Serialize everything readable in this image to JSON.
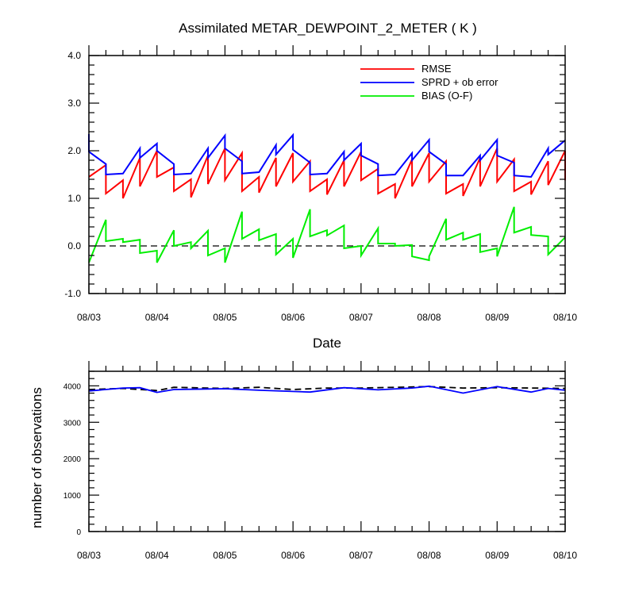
{
  "chart_data": [
    {
      "type": "line",
      "title": "Assimilated METAR_DEWPOINT_2_METER ( K )",
      "xlabel": "Date",
      "ylabel": "",
      "ylim": [
        -1.0,
        4.0
      ],
      "yticks": [
        "-1.0",
        "0.0",
        "1.0",
        "2.0",
        "3.0",
        "4.0"
      ],
      "xlim": [
        0,
        7
      ],
      "xticks": [
        "08/03",
        "08/04",
        "08/05",
        "08/06",
        "08/07",
        "08/08",
        "08/09",
        "08/10"
      ],
      "grid": false,
      "legend": "top-right",
      "reference_line": {
        "y": 0,
        "style": "dashed",
        "color": "#000000"
      },
      "series": [
        {
          "name": "RMSE",
          "color": "#ff0000",
          "points": [
            [
              0.0,
              1.45
            ],
            [
              0.25,
              1.7
            ],
            [
              0.25,
              1.1
            ],
            [
              0.5,
              1.38
            ],
            [
              0.5,
              1.0
            ],
            [
              0.75,
              1.85
            ],
            [
              0.75,
              1.25
            ],
            [
              1.0,
              2.0
            ],
            [
              1.0,
              1.45
            ],
            [
              1.25,
              1.65
            ],
            [
              1.25,
              1.15
            ],
            [
              1.5,
              1.4
            ],
            [
              1.5,
              1.02
            ],
            [
              1.75,
              1.9
            ],
            [
              1.75,
              1.3
            ],
            [
              2.0,
              2.05
            ],
            [
              2.0,
              1.38
            ],
            [
              2.25,
              1.95
            ],
            [
              2.25,
              1.15
            ],
            [
              2.5,
              1.45
            ],
            [
              2.5,
              1.12
            ],
            [
              2.75,
              1.85
            ],
            [
              2.75,
              1.25
            ],
            [
              3.0,
              1.95
            ],
            [
              3.0,
              1.35
            ],
            [
              3.25,
              1.78
            ],
            [
              3.25,
              1.15
            ],
            [
              3.5,
              1.4
            ],
            [
              3.5,
              1.08
            ],
            [
              3.75,
              1.8
            ],
            [
              3.75,
              1.25
            ],
            [
              4.0,
              1.98
            ],
            [
              4.0,
              1.38
            ],
            [
              4.25,
              1.62
            ],
            [
              4.25,
              1.1
            ],
            [
              4.5,
              1.3
            ],
            [
              4.5,
              1.0
            ],
            [
              4.75,
              1.82
            ],
            [
              4.75,
              1.25
            ],
            [
              5.0,
              1.95
            ],
            [
              5.0,
              1.35
            ],
            [
              5.25,
              1.78
            ],
            [
              5.25,
              1.1
            ],
            [
              5.5,
              1.3
            ],
            [
              5.5,
              1.05
            ],
            [
              5.75,
              1.85
            ],
            [
              5.75,
              1.25
            ],
            [
              6.0,
              2.05
            ],
            [
              6.0,
              1.35
            ],
            [
              6.25,
              1.82
            ],
            [
              6.25,
              1.15
            ],
            [
              6.5,
              1.35
            ],
            [
              6.5,
              1.08
            ],
            [
              6.75,
              1.78
            ],
            [
              6.75,
              1.28
            ],
            [
              7.0,
              2.0
            ],
            [
              7.0,
              1.38
            ]
          ]
        },
        {
          "name": "SPRD + ob error",
          "color": "#0000ff",
          "points": [
            [
              0.0,
              2.35
            ],
            [
              0.0,
              1.98
            ],
            [
              0.25,
              1.72
            ],
            [
              0.25,
              1.5
            ],
            [
              0.5,
              1.52
            ],
            [
              0.75,
              2.05
            ],
            [
              0.75,
              1.85
            ],
            [
              1.0,
              2.15
            ],
            [
              1.0,
              2.0
            ],
            [
              1.25,
              1.72
            ],
            [
              1.25,
              1.5
            ],
            [
              1.5,
              1.52
            ],
            [
              1.75,
              2.05
            ],
            [
              1.75,
              1.85
            ],
            [
              2.0,
              2.32
            ],
            [
              2.0,
              2.05
            ],
            [
              2.25,
              1.78
            ],
            [
              2.25,
              1.52
            ],
            [
              2.5,
              1.55
            ],
            [
              2.75,
              2.12
            ],
            [
              2.75,
              1.92
            ],
            [
              3.0,
              2.33
            ],
            [
              3.0,
              2.02
            ],
            [
              3.25,
              1.75
            ],
            [
              3.25,
              1.5
            ],
            [
              3.5,
              1.52
            ],
            [
              3.75,
              1.98
            ],
            [
              3.75,
              1.8
            ],
            [
              4.0,
              2.15
            ],
            [
              4.0,
              1.9
            ],
            [
              4.25,
              1.72
            ],
            [
              4.25,
              1.48
            ],
            [
              4.5,
              1.5
            ],
            [
              4.75,
              1.95
            ],
            [
              4.75,
              1.8
            ],
            [
              5.0,
              2.23
            ],
            [
              5.0,
              1.98
            ],
            [
              5.25,
              1.72
            ],
            [
              5.25,
              1.48
            ],
            [
              5.5,
              1.48
            ],
            [
              5.75,
              1.9
            ],
            [
              5.75,
              1.8
            ],
            [
              6.0,
              2.23
            ],
            [
              6.0,
              1.9
            ],
            [
              6.25,
              1.75
            ],
            [
              6.25,
              1.48
            ],
            [
              6.5,
              1.45
            ],
            [
              6.75,
              2.05
            ],
            [
              6.75,
              1.92
            ],
            [
              7.0,
              2.22
            ]
          ]
        },
        {
          "name": "BIAS (O-F)",
          "color": "#00ee00",
          "points": [
            [
              0.0,
              -0.35
            ],
            [
              0.25,
              0.55
            ],
            [
              0.25,
              0.1
            ],
            [
              0.5,
              0.15
            ],
            [
              0.5,
              0.08
            ],
            [
              0.75,
              0.13
            ],
            [
              0.75,
              -0.15
            ],
            [
              1.0,
              -0.1
            ],
            [
              1.0,
              -0.35
            ],
            [
              1.25,
              0.33
            ],
            [
              1.25,
              0.0
            ],
            [
              1.5,
              0.08
            ],
            [
              1.5,
              -0.05
            ],
            [
              1.75,
              0.32
            ],
            [
              1.75,
              -0.2
            ],
            [
              2.0,
              -0.05
            ],
            [
              2.0,
              -0.35
            ],
            [
              2.25,
              0.72
            ],
            [
              2.25,
              0.15
            ],
            [
              2.5,
              0.35
            ],
            [
              2.5,
              0.12
            ],
            [
              2.75,
              0.25
            ],
            [
              2.75,
              -0.18
            ],
            [
              3.0,
              0.15
            ],
            [
              3.0,
              -0.25
            ],
            [
              3.25,
              0.77
            ],
            [
              3.25,
              0.2
            ],
            [
              3.5,
              0.33
            ],
            [
              3.5,
              0.22
            ],
            [
              3.75,
              0.43
            ],
            [
              3.75,
              -0.05
            ],
            [
              4.0,
              0.0
            ],
            [
              4.0,
              -0.2
            ],
            [
              4.25,
              0.37
            ],
            [
              4.25,
              0.05
            ],
            [
              4.5,
              0.05
            ],
            [
              4.5,
              0.0
            ],
            [
              4.75,
              0.02
            ],
            [
              4.75,
              -0.22
            ],
            [
              5.0,
              -0.3
            ],
            [
              5.0,
              -0.22
            ],
            [
              5.25,
              0.57
            ],
            [
              5.25,
              0.13
            ],
            [
              5.5,
              0.28
            ],
            [
              5.5,
              0.13
            ],
            [
              5.75,
              0.25
            ],
            [
              5.75,
              -0.13
            ],
            [
              6.0,
              -0.05
            ],
            [
              6.0,
              -0.22
            ],
            [
              6.25,
              0.82
            ],
            [
              6.25,
              0.28
            ],
            [
              6.5,
              0.4
            ],
            [
              6.5,
              0.23
            ],
            [
              6.75,
              0.2
            ],
            [
              6.75,
              -0.18
            ],
            [
              7.0,
              0.18
            ]
          ]
        }
      ]
    },
    {
      "type": "line",
      "title": "",
      "xlabel": "",
      "ylabel": "number of observations",
      "ylim": [
        0,
        4400
      ],
      "yticks": [
        "0",
        "1000",
        "2000",
        "3000",
        "4000"
      ],
      "xlim": [
        0,
        7
      ],
      "xticks": [
        "08/03",
        "08/04",
        "08/05",
        "08/06",
        "08/07",
        "08/08",
        "08/09",
        "08/10"
      ],
      "grid": false,
      "series": [
        {
          "name": "",
          "color": "#000000",
          "dashed": true,
          "points": [
            [
              0.0,
              3900
            ],
            [
              0.5,
              3930
            ],
            [
              1.0,
              3870
            ],
            [
              1.25,
              3960
            ],
            [
              2.0,
              3930
            ],
            [
              2.5,
              3960
            ],
            [
              3.0,
              3900
            ],
            [
              3.5,
              3940
            ],
            [
              4.0,
              3940
            ],
            [
              5.0,
              3980
            ],
            [
              5.5,
              3940
            ],
            [
              6.0,
              3950
            ],
            [
              6.5,
              3940
            ],
            [
              7.0,
              3930
            ]
          ]
        },
        {
          "name": "",
          "color": "#0000ff",
          "dashed": false,
          "points": [
            [
              0.0,
              3860
            ],
            [
              0.5,
              3940
            ],
            [
              0.75,
              3950
            ],
            [
              1.0,
              3820
            ],
            [
              1.25,
              3900
            ],
            [
              2.0,
              3920
            ],
            [
              2.5,
              3880
            ],
            [
              3.25,
              3830
            ],
            [
              3.75,
              3950
            ],
            [
              4.25,
              3890
            ],
            [
              4.75,
              3940
            ],
            [
              5.0,
              3990
            ],
            [
              5.5,
              3800
            ],
            [
              6.0,
              3980
            ],
            [
              6.5,
              3830
            ],
            [
              6.75,
              3930
            ],
            [
              7.0,
              3880
            ]
          ]
        }
      ]
    }
  ]
}
